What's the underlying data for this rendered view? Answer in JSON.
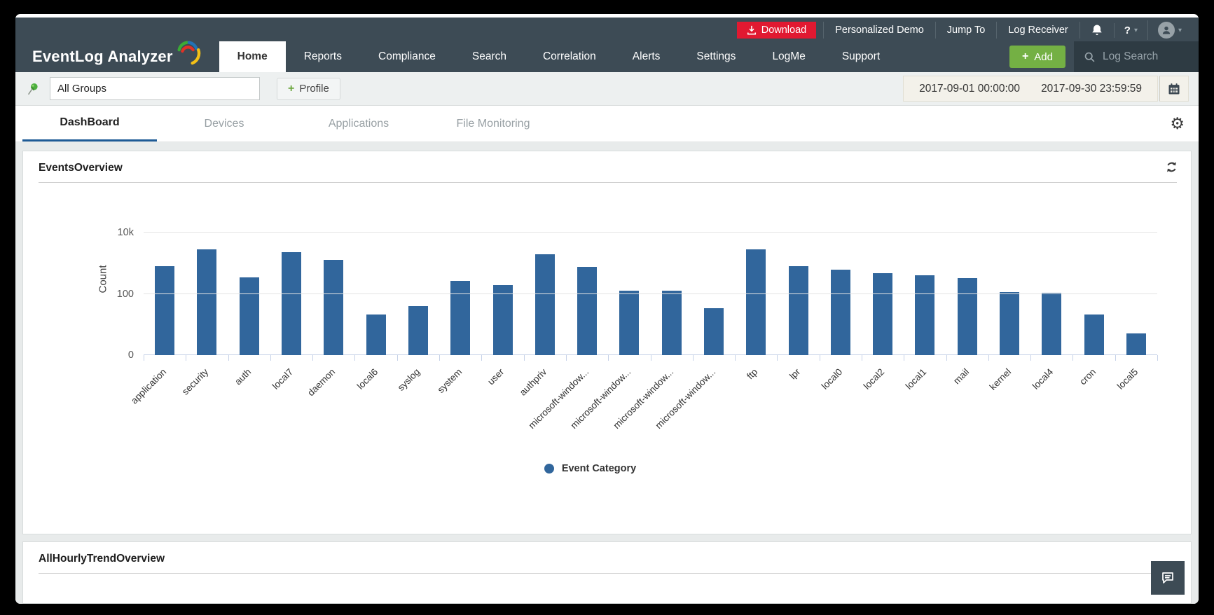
{
  "header": {
    "logo_text": "EventLog Analyzer",
    "top_bar": {
      "download_label": "Download",
      "links": [
        {
          "label": "Personalized Demo"
        },
        {
          "label": "Jump To"
        },
        {
          "label": "Log Receiver"
        }
      ],
      "help_label": "?"
    },
    "nav": [
      {
        "label": "Home",
        "active": true
      },
      {
        "label": "Reports"
      },
      {
        "label": "Compliance"
      },
      {
        "label": "Search"
      },
      {
        "label": "Correlation"
      },
      {
        "label": "Alerts"
      },
      {
        "label": "Settings"
      },
      {
        "label": "LogMe"
      },
      {
        "label": "Support"
      }
    ],
    "add_button_label": "Add",
    "log_search_placeholder": "Log Search"
  },
  "toolbar": {
    "group_selector_value": "All Groups",
    "profile_button_label": "Profile",
    "date_range": {
      "start": "2017-09-01 00:00:00",
      "end": "2017-09-30 23:59:59"
    }
  },
  "tabs": [
    {
      "label": "DashBoard",
      "active": true
    },
    {
      "label": "Devices"
    },
    {
      "label": "Applications"
    },
    {
      "label": "File Monitoring"
    }
  ],
  "panels": {
    "events_overview_title": "EventsOverview",
    "hourly_trend_title": "AllHourlyTrendOverview"
  },
  "chart_data": {
    "type": "bar",
    "title": "EventsOverview",
    "xlabel": "",
    "ylabel": "Count",
    "y_scale": "log",
    "y_ticks": [
      "10k",
      "100",
      "0"
    ],
    "ylim": [
      0,
      10000
    ],
    "grid": true,
    "legend": {
      "label": "Event Category",
      "position": "bottom",
      "color": "#31669c"
    },
    "bar_color": "#31669c",
    "categories": [
      "application",
      "security",
      "auth",
      "local7",
      "daemon",
      "local6",
      "syslog",
      "system",
      "user",
      "authpriv",
      "microsoft-window...",
      "microsoft-window...",
      "microsoft-window...",
      "microsoft-window...",
      "ftp",
      "lpr",
      "local0",
      "local2",
      "local1",
      "mail",
      "kernel",
      "local4",
      "cron",
      "local5"
    ],
    "values": [
      800,
      2800,
      350,
      2300,
      1300,
      21,
      40,
      265,
      190,
      2000,
      750,
      125,
      125,
      34,
      2800,
      780,
      620,
      470,
      400,
      320,
      115,
      107,
      21,
      5
    ]
  },
  "icons": {
    "plus": "+",
    "gear": "⚙",
    "caret_down": "▾"
  },
  "colors": {
    "header_bg": "#3d4b55",
    "download_red": "#e11931",
    "add_green": "#74b044",
    "accent_blue": "#1e5b96",
    "bar_blue": "#31669c"
  }
}
